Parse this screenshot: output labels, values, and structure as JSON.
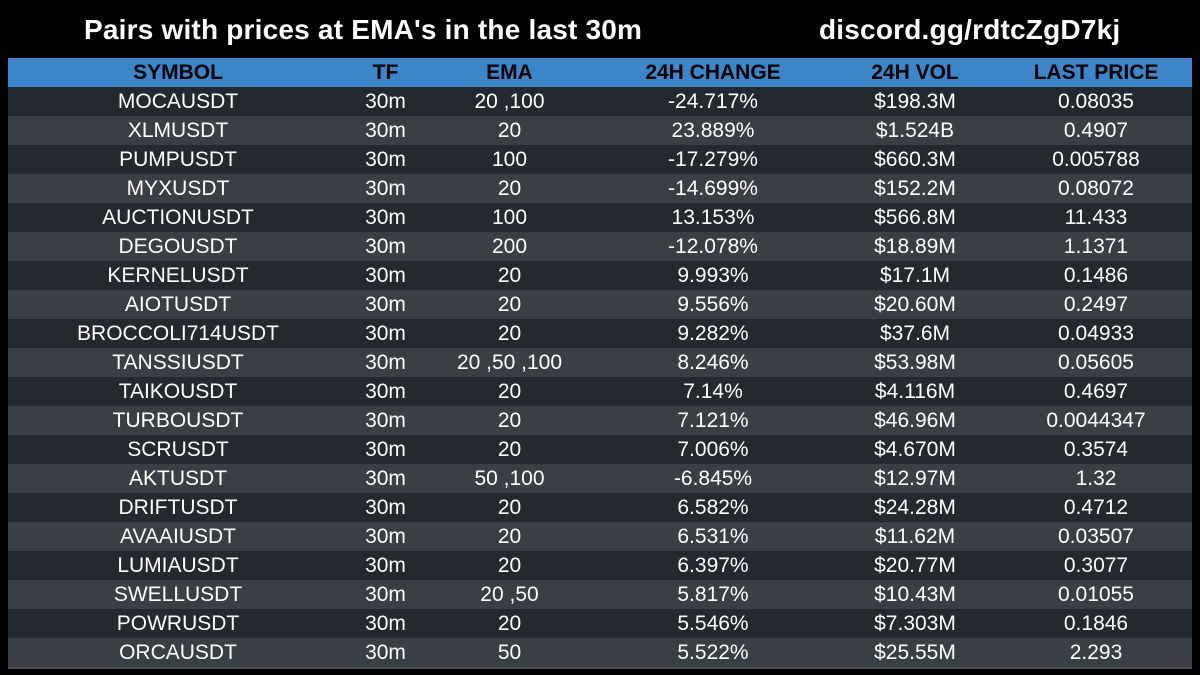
{
  "header": {
    "title": "Pairs with prices at EMA's in the last 30m",
    "discord": "discord.gg/rdtcZgD7kj"
  },
  "colors": {
    "background": "#000000",
    "header_row": "#3a86c8",
    "row_dark": "#24292f",
    "row_light": "#3a3f45",
    "text": "#ffffff"
  },
  "table": {
    "columns": [
      "SYMBOL",
      "TF",
      "EMA",
      "24H CHANGE",
      "24H VOL",
      "LAST PRICE"
    ],
    "rows": [
      [
        "MOCAUSDT",
        "30m",
        "20 ,100",
        "-24.717%",
        "$198.3M",
        "0.08035"
      ],
      [
        "XLMUSDT",
        "30m",
        "20",
        "23.889%",
        "$1.524B",
        "0.4907"
      ],
      [
        "PUMPUSDT",
        "30m",
        "100",
        "-17.279%",
        "$660.3M",
        "0.005788"
      ],
      [
        "MYXUSDT",
        "30m",
        "20",
        "-14.699%",
        "$152.2M",
        "0.08072"
      ],
      [
        "AUCTIONUSDT",
        "30m",
        "100",
        "13.153%",
        "$566.8M",
        "11.433"
      ],
      [
        "DEGOUSDT",
        "30m",
        "200",
        "-12.078%",
        "$18.89M",
        "1.1371"
      ],
      [
        "KERNELUSDT",
        "30m",
        "20",
        "9.993%",
        "$17.1M",
        "0.1486"
      ],
      [
        "AIOTUSDT",
        "30m",
        "20",
        "9.556%",
        "$20.60M",
        "0.2497"
      ],
      [
        "BROCCOLI714USDT",
        "30m",
        "20",
        "9.282%",
        "$37.6M",
        "0.04933"
      ],
      [
        "TANSSIUSDT",
        "30m",
        "20 ,50 ,100",
        "8.246%",
        "$53.98M",
        "0.05605"
      ],
      [
        "TAIKOUSDT",
        "30m",
        "20",
        "7.14%",
        "$4.116M",
        "0.4697"
      ],
      [
        "TURBOUSDT",
        "30m",
        "20",
        "7.121%",
        "$46.96M",
        "0.0044347"
      ],
      [
        "SCRUSDT",
        "30m",
        "20",
        "7.006%",
        "$4.670M",
        "0.3574"
      ],
      [
        "AKTUSDT",
        "30m",
        "50 ,100",
        "-6.845%",
        "$12.97M",
        "1.32"
      ],
      [
        "DRIFTUSDT",
        "30m",
        "20",
        "6.582%",
        "$24.28M",
        "0.4712"
      ],
      [
        "AVAAIUSDT",
        "30m",
        "20",
        "6.531%",
        "$11.62M",
        "0.03507"
      ],
      [
        "LUMIAUSDT",
        "30m",
        "20",
        "6.397%",
        "$20.77M",
        "0.3077"
      ],
      [
        "SWELLUSDT",
        "30m",
        "20 ,50",
        "5.817%",
        "$10.43M",
        "0.01055"
      ],
      [
        "POWRUSDT",
        "30m",
        "20",
        "5.546%",
        "$7.303M",
        "0.1846"
      ],
      [
        "ORCAUSDT",
        "30m",
        "50",
        "5.522%",
        "$25.55M",
        "2.293"
      ]
    ]
  }
}
